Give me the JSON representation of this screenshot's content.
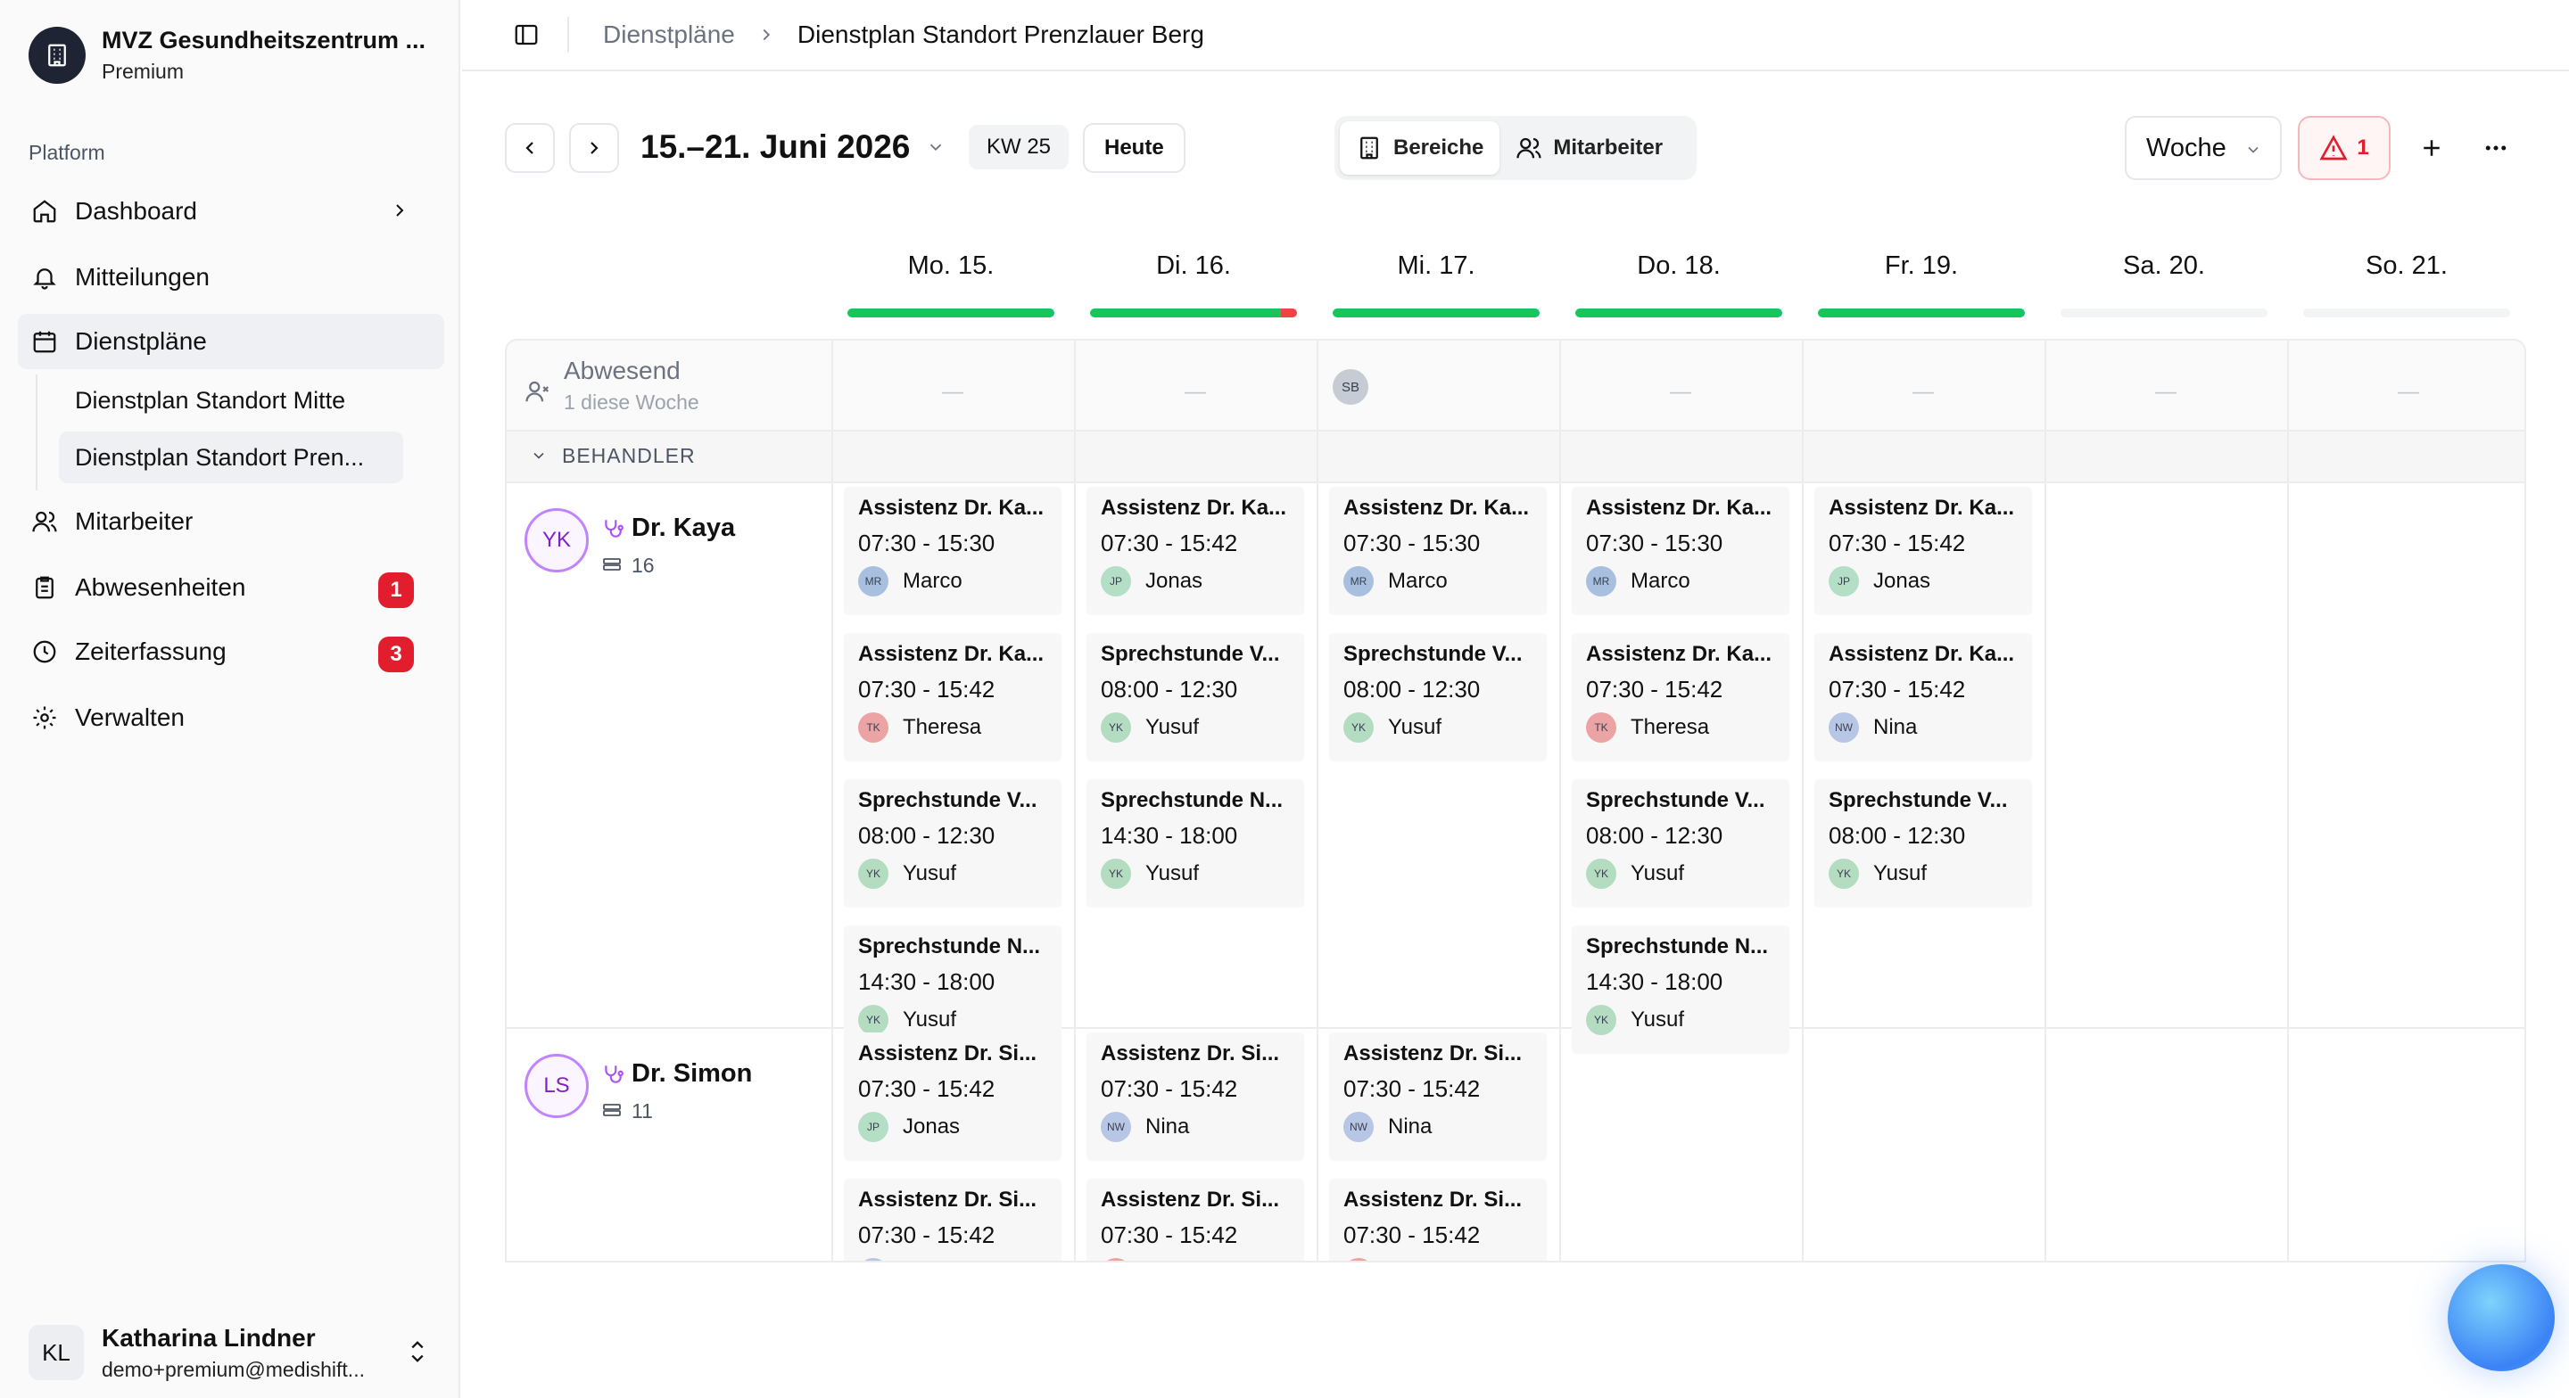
{
  "org": {
    "name": "MVZ Gesundheitszentrum ...",
    "plan": "Premium"
  },
  "nav": {
    "section": "Platform",
    "dashboard": "Dashboard",
    "mitteilungen": "Mitteilungen",
    "dienstplaene": "Dienstpläne",
    "sub_mitte": "Dienstplan Standort Mitte",
    "sub_prenz": "Dienstplan Standort Pren...",
    "mitarbeiter": "Mitarbeiter",
    "abwesenheiten": "Abwesenheiten",
    "abwesenheiten_badge": "1",
    "zeiterfassung": "Zeiterfassung",
    "zeiterfassung_badge": "3",
    "verwalten": "Verwalten"
  },
  "user": {
    "initials": "KL",
    "name": "Katharina Lindner",
    "email": "demo+premium@medishift..."
  },
  "breadcrumb": {
    "parent": "Dienstpläne",
    "current": "Dienstplan Standort Prenzlauer Berg"
  },
  "toolbar": {
    "range": "15.–21. Juni 2026",
    "week": "KW 25",
    "today": "Heute",
    "seg_areas": "Bereiche",
    "seg_staff": "Mitarbeiter",
    "view": "Woche",
    "alerts": "1"
  },
  "days": [
    {
      "label": "Mo. 15.",
      "status": "ok"
    },
    {
      "label": "Di. 16.",
      "status": "warn"
    },
    {
      "label": "Mi. 17.",
      "status": "ok"
    },
    {
      "label": "Do. 18.",
      "status": "ok"
    },
    {
      "label": "Fr. 19.",
      "status": "ok"
    },
    {
      "label": "Sa. 20.",
      "status": "none"
    },
    {
      "label": "So. 21.",
      "status": "none"
    }
  ],
  "colors": {
    "ok": "#16c55b",
    "warn": "#ef4444",
    "none": "#f3f4f6",
    "badge": "#e11d2e",
    "accent": "#a855f7"
  },
  "absent": {
    "title": "Abwesend",
    "subtitle": "1 diese Woche",
    "dash": "—",
    "chip": "SB"
  },
  "group": {
    "label": "BEHANDLER"
  },
  "people": [
    {
      "initials": "YK",
      "name": "Dr. Kaya",
      "count": "16"
    },
    {
      "initials": "LS",
      "name": "Dr. Simon",
      "count": "11"
    }
  ],
  "staff": {
    "MR": {
      "name": "Marco",
      "color": "#a9bfe0"
    },
    "JP": {
      "name": "Jonas",
      "color": "#b5dec6"
    },
    "TK": {
      "name": "Theresa",
      "color": "#eca3a3"
    },
    "YK": {
      "name": "Yusuf",
      "color": "#b3dcc0"
    },
    "NW": {
      "name": "Nina",
      "color": "#b7c6e4"
    }
  },
  "shifts": [
    [
      [
        {
          "title": "Assistenz Dr. Ka...",
          "time": "07:30 - 15:30",
          "staff": "MR"
        },
        {
          "title": "Assistenz Dr. Ka...",
          "time": "07:30 - 15:42",
          "staff": "TK"
        },
        {
          "title": "Sprechstunde V...",
          "time": "08:00 - 12:30",
          "staff": "YK"
        },
        {
          "title": "Sprechstunde N...",
          "time": "14:30 - 18:00",
          "staff": "YK"
        }
      ],
      [
        {
          "title": "Assistenz Dr. Ka...",
          "time": "07:30 - 15:42",
          "staff": "JP"
        },
        {
          "title": "Sprechstunde V...",
          "time": "08:00 - 12:30",
          "staff": "YK"
        },
        {
          "title": "Sprechstunde N...",
          "time": "14:30 - 18:00",
          "staff": "YK"
        }
      ],
      [
        {
          "title": "Assistenz Dr. Ka...",
          "time": "07:30 - 15:30",
          "staff": "MR"
        },
        {
          "title": "Sprechstunde V...",
          "time": "08:00 - 12:30",
          "staff": "YK"
        }
      ],
      [
        {
          "title": "Assistenz Dr. Ka...",
          "time": "07:30 - 15:30",
          "staff": "MR"
        },
        {
          "title": "Assistenz Dr. Ka...",
          "time": "07:30 - 15:42",
          "staff": "TK"
        },
        {
          "title": "Sprechstunde V...",
          "time": "08:00 - 12:30",
          "staff": "YK"
        },
        {
          "title": "Sprechstunde N...",
          "time": "14:30 - 18:00",
          "staff": "YK"
        }
      ],
      [
        {
          "title": "Assistenz Dr. Ka...",
          "time": "07:30 - 15:42",
          "staff": "JP"
        },
        {
          "title": "Assistenz Dr. Ka...",
          "time": "07:30 - 15:42",
          "staff": "NW"
        },
        {
          "title": "Sprechstunde V...",
          "time": "08:00 - 12:30",
          "staff": "YK"
        }
      ],
      [],
      []
    ],
    [
      [
        {
          "title": "Assistenz Dr. Si...",
          "time": "07:30 - 15:42",
          "staff": "JP"
        },
        {
          "title": "Assistenz Dr. Si...",
          "time": "07:30 - 15:42",
          "staff": "NW"
        }
      ],
      [
        {
          "title": "Assistenz Dr. Si...",
          "time": "07:30 - 15:42",
          "staff": "NW"
        },
        {
          "title": "Assistenz Dr. Si...",
          "time": "07:30 - 15:42",
          "staff": "TK"
        }
      ],
      [
        {
          "title": "Assistenz Dr. Si...",
          "time": "07:30 - 15:42",
          "staff": "NW"
        },
        {
          "title": "Assistenz Dr. Si...",
          "time": "07:30 - 15:42",
          "staff": "TK"
        }
      ],
      [],
      [],
      [],
      []
    ]
  ]
}
